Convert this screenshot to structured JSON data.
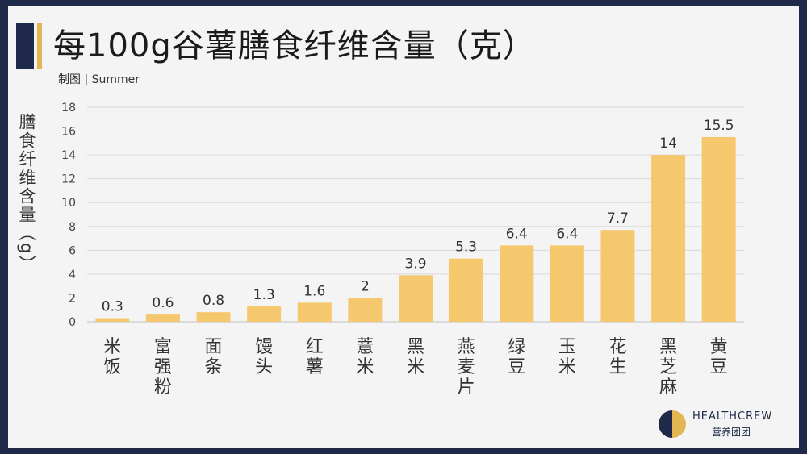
{
  "title": "每100g谷薯膳食纤维含量（克）",
  "credit": "制图 | Summer",
  "brand": {
    "name": "HEALTHCREW",
    "sub": "营养团团"
  },
  "colors": {
    "bar": "#f6c86d",
    "accent": "#e2b652",
    "dark": "#1f2a4a",
    "grid": "#d9d9d9"
  },
  "chart_data": {
    "type": "bar",
    "title": "每100g谷薯膳食纤维含量（克）",
    "ylabel": "膳食纤维含量（g）",
    "xlabel": "",
    "ylim": [
      0,
      18
    ],
    "yticks": [
      0,
      2,
      4,
      6,
      8,
      10,
      12,
      14,
      16,
      18
    ],
    "grid": true,
    "categories": [
      "米饭",
      "富强粉",
      "面条",
      "馒头",
      "红薯",
      "薏米",
      "黑米",
      "燕麦片",
      "绿豆",
      "玉米",
      "花生",
      "黑芝麻",
      "黄豆"
    ],
    "values": [
      0.3,
      0.6,
      0.8,
      1.3,
      1.6,
      2,
      3.9,
      5.3,
      6.4,
      6.4,
      7.7,
      14,
      15.5
    ]
  }
}
